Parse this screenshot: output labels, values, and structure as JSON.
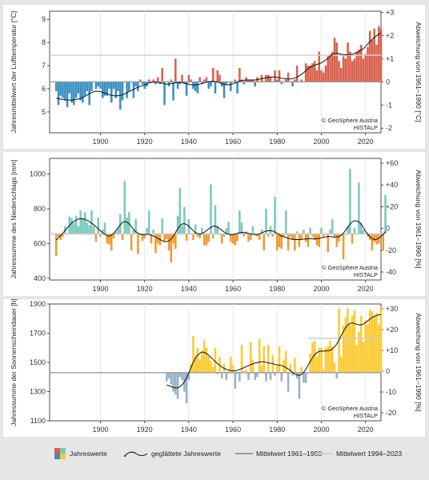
{
  "credit": [
    "© GeoSphere Austria",
    "HISTALP"
  ],
  "legend": {
    "annual": "Jahreswerte",
    "smoothed": "geglättete Jahreswerte",
    "mean_ref": "Mittelwert 1961–1990",
    "mean_recent": "Mittelwert 1994–2023"
  },
  "colors": {
    "temp_pos": "#d9604c",
    "temp_neg": "#3a8fc4",
    "prec_pos": "#79c9bd",
    "prec_neg": "#f09a2c",
    "sun_pos": "#fccb32",
    "sun_neg": "#9ab1c4",
    "smooth": "#111111",
    "mean_ref": "#9a9a9a",
    "mean_recent": "#cfcfcf"
  },
  "chart_data": [
    {
      "type": "bar",
      "ylabel": "Jahresmittelwert der Lufttemperatur [°C]",
      "y2label": "Abweichung von 1961–1990 [°C]",
      "xticks": [
        "1900",
        "1920",
        "1940",
        "1960",
        "1980",
        "2000",
        "2020"
      ],
      "yticks": [
        "5",
        "6",
        "7",
        "8",
        "9"
      ],
      "y2ticks": [
        "-2",
        "-1",
        "0",
        "+1",
        "+2",
        "+3"
      ],
      "xlim": [
        1877,
        2027
      ],
      "ylim": [
        4.1,
        9.35
      ],
      "baseline": 6.3,
      "mean_ref": 6.3,
      "mean_recent": 7.45,
      "recent_start": 1994,
      "start_year": 1880,
      "values": [
        5.9,
        5.3,
        5.7,
        5.6,
        5.5,
        5.2,
        5.8,
        5.4,
        5.3,
        5.6,
        5.8,
        5.5,
        5.4,
        5.7,
        5.9,
        5.3,
        5.9,
        6.3,
        6.0,
        6.1,
        6.0,
        5.6,
        5.7,
        5.7,
        6.0,
        5.4,
        6.0,
        5.6,
        5.9,
        5.1,
        5.5,
        6.3,
        5.6,
        5.9,
        6.3,
        5.6,
        6.1,
        5.9,
        6.4,
        6.2,
        6.0,
        6.1,
        6.4,
        6.3,
        6.4,
        6.2,
        6.5,
        6.2,
        6.9,
        5.3,
        6.3,
        6.1,
        6.4,
        5.5,
        7.3,
        6.0,
        6.2,
        6.6,
        6.2,
        5.7,
        6.6,
        6.4,
        6.0,
        5.9,
        5.8,
        6.5,
        6.2,
        6.4,
        6.5,
        6.0,
        6.1,
        6.9,
        5.8,
        6.8,
        6.6,
        6.1,
        5.6,
        6.2,
        6.3,
        5.9,
        6.3,
        6.4,
        5.8,
        6.9,
        6.4,
        6.2,
        6.5,
        6.4,
        6.4,
        6.4,
        6.1,
        6.5,
        6.3,
        6.6,
        6.3,
        6.6,
        6.6,
        6.5,
        6.3,
        6.8,
        6.4,
        6.8,
        6.2,
        6.3,
        6.4,
        6.7,
        6.3,
        6.1,
        6.4,
        7.0,
        6.3,
        6.4,
        6.3,
        7.1,
        7.0,
        7.0,
        7.1,
        7.2,
        6.8,
        7.6,
        6.8,
        6.7,
        7.0,
        7.4,
        7.5,
        7.6,
        8.2,
        8.0,
        7.2,
        6.9,
        7.4,
        7.3,
        8.0,
        7.6,
        7.2,
        7.3,
        7.6,
        7.7,
        7.9,
        7.3,
        7.5,
        7.8,
        8.5,
        8.1,
        8.6,
        7.9,
        8.7,
        8.6
      ],
      "smoothed_note": "line through smoothed series"
    },
    {
      "type": "bar",
      "ylabel": "Jahressumme des Niederschlags [mm]",
      "y2label": "Abweichung von 1961–1990 [%]",
      "xticks": [
        "1900",
        "1920",
        "1940",
        "1960",
        "1980",
        "2000",
        "2020"
      ],
      "yticks": [
        "400",
        "600",
        "800",
        "1000"
      ],
      "y2ticks": [
        "-40",
        "-20",
        "0",
        "+20",
        "+40",
        "+60"
      ],
      "xlim": [
        1877,
        2027
      ],
      "ylim": [
        390,
        1090
      ],
      "baseline": 655,
      "mean_ref": 655,
      "mean_recent": 655,
      "recent_start": 1994,
      "start_year": 1880,
      "values": [
        530,
        640,
        620,
        640,
        700,
        655,
        755,
        745,
        720,
        760,
        700,
        790,
        740,
        780,
        720,
        705,
        790,
        700,
        610,
        750,
        640,
        680,
        720,
        600,
        595,
        560,
        630,
        670,
        690,
        770,
        620,
        960,
        750,
        780,
        560,
        680,
        740,
        540,
        650,
        615,
        630,
        690,
        790,
        600,
        680,
        545,
        600,
        590,
        745,
        610,
        625,
        560,
        490,
        600,
        570,
        760,
        920,
        700,
        810,
        615,
        740,
        660,
        620,
        710,
        640,
        630,
        690,
        590,
        590,
        610,
        940,
        630,
        820,
        700,
        660,
        600,
        640,
        690,
        725,
        610,
        600,
        590,
        615,
        790,
        720,
        640,
        670,
        610,
        620,
        700,
        660,
        640,
        620,
        680,
        560,
        800,
        640,
        700,
        640,
        870,
        560,
        580,
        570,
        640,
        790,
        560,
        640,
        620,
        560,
        670,
        580,
        620,
        680,
        610,
        580,
        690,
        640,
        620,
        590,
        580,
        690,
        640,
        660,
        550,
        680,
        740,
        640,
        580,
        610,
        650,
        510,
        650,
        700,
        1030,
        600,
        690,
        650,
        950,
        720,
        680,
        660,
        640,
        620,
        560,
        610,
        595,
        600,
        660,
        560,
        880
      ],
      "smoothed_note": "line through smoothed series"
    },
    {
      "type": "bar",
      "ylabel": "Jahressumme der Sonnenscheindauer [h]",
      "y2label": "Abweichung von 1961–1990 [%]",
      "xticks": [
        "1900",
        "1920",
        "1940",
        "1960",
        "1980",
        "2000",
        "2020"
      ],
      "yticks": [
        "1100",
        "1300",
        "1500",
        "1700",
        "1900"
      ],
      "y2ticks": [
        "-20",
        "-10",
        "0",
        "+10",
        "+20",
        "+30"
      ],
      "xlim": [
        1877,
        2027
      ],
      "ylim": [
        1100,
        1900
      ],
      "baseline": 1430,
      "mean_ref": 1430,
      "mean_recent": 1665,
      "recent_start": 1994,
      "start_year": 1930,
      "values": [
        1370,
        1390,
        1350,
        1300,
        1280,
        1250,
        1400,
        1380,
        1300,
        1220,
        1380,
        1490,
        1680,
        1550,
        1600,
        1520,
        1580,
        1650,
        1600,
        1540,
        1510,
        1470,
        1600,
        1420,
        1540,
        1390,
        1490,
        1380,
        1440,
        1540,
        1480,
        1320,
        1420,
        1370,
        1620,
        1440,
        1450,
        1380,
        1640,
        1520,
        1380,
        1400,
        1660,
        1480,
        1610,
        1370,
        1620,
        1380,
        1550,
        1410,
        1480,
        1610,
        1370,
        1520,
        1580,
        1300,
        1490,
        1410,
        1530,
        1390,
        1250,
        1470,
        1360,
        1360,
        1430,
        1560,
        1640,
        1650,
        1540,
        1600,
        1600,
        1450,
        1600,
        1610,
        1650,
        1610,
        1500,
        1390,
        1870,
        1540,
        1750,
        1810,
        1870,
        1760,
        1820,
        1860,
        1620,
        1710,
        1820,
        1640,
        1790,
        1760,
        1860,
        1850,
        1820,
        1840,
        1760,
        1880
      ],
      "smoothed_note": "line through smoothed series"
    }
  ]
}
